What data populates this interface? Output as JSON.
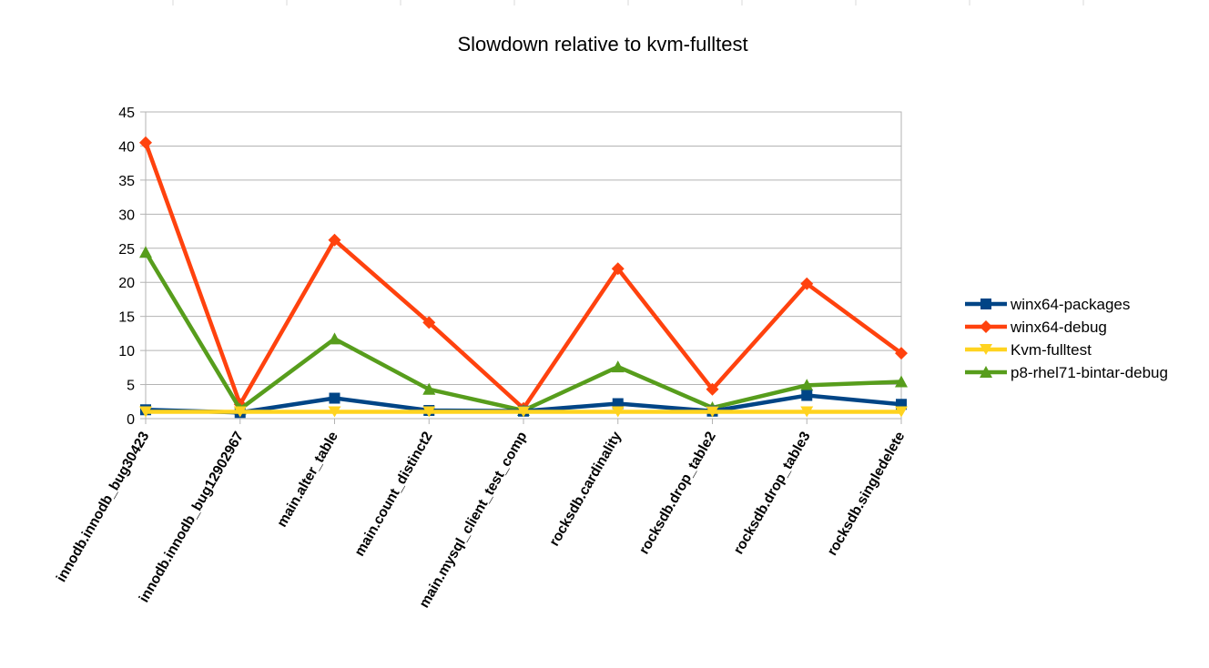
{
  "chart_data": {
    "type": "line",
    "title": "Slowdown relative to kvm-fulltest",
    "xlabel": "",
    "ylabel": "",
    "ylim": [
      0,
      45
    ],
    "yticks": [
      0,
      5,
      10,
      15,
      20,
      25,
      30,
      35,
      40,
      45
    ],
    "grid": true,
    "legend_position": "right",
    "categories": [
      "innodb.innodb_bug30423",
      "innodb.innodb_bug12902967",
      "main.alter_table",
      "main.count_distinct2",
      "main.mysql_client_test_comp",
      "rocksdb.cardinality",
      "rocksdb.drop_table2",
      "rocksdb.drop_table3",
      "rocksdb.singledelete"
    ],
    "series": [
      {
        "name": "winx64-packages",
        "color": "#004586",
        "marker": "square",
        "values": [
          1.3,
          0.9,
          3.0,
          1.2,
          1.1,
          2.2,
          1.1,
          3.4,
          2.1
        ]
      },
      {
        "name": "winx64-debug",
        "color": "#ff420e",
        "marker": "diamond",
        "values": [
          40.5,
          2.1,
          26.2,
          14.1,
          1.5,
          22.0,
          4.3,
          19.8,
          9.6
        ]
      },
      {
        "name": "Kvm-fulltest",
        "color": "#ffd320",
        "marker": "triangle-down",
        "values": [
          1,
          1,
          1,
          1,
          1,
          1,
          1,
          1,
          1
        ]
      },
      {
        "name": "p8-rhel71-bintar-debug",
        "color": "#579d1c",
        "marker": "triangle-up",
        "values": [
          24.4,
          1.4,
          11.7,
          4.3,
          1.2,
          7.6,
          1.6,
          4.9,
          5.4
        ]
      }
    ]
  }
}
